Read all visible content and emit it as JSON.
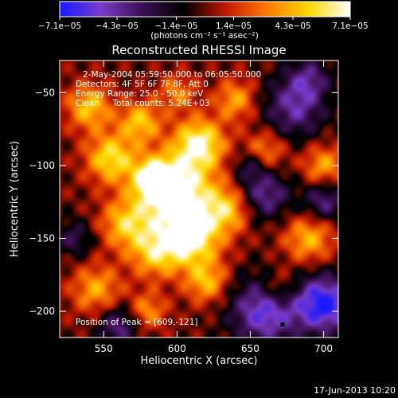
{
  "chart_data": {
    "type": "heatmap",
    "title": "Reconstructed RHESSI Image",
    "xlabel": "Heliocentric X (arcsec)",
    "ylabel": "Heliocentric Y (arcsec)",
    "xlim": [
      520,
      710
    ],
    "ylim": [
      -218,
      -28
    ],
    "x_ticks": [
      550,
      600,
      650,
      700
    ],
    "y_ticks": [
      -50,
      -100,
      -150,
      -200
    ],
    "colorbar": {
      "label": "(photons cm⁻² s⁻¹ asec⁻²)",
      "range": [
        -7.1e-05,
        7.1e-05
      ],
      "tick_labels": [
        "−7.1e−05",
        "−4.3e−05",
        "−1.4e−05",
        "1.4e−05",
        "4.3e−05",
        "7.1e−05"
      ],
      "tick_values": [
        -7.1e-05,
        -4.3e-05,
        -1.4e-05,
        1.4e-05,
        4.3e-05,
        7.1e-05
      ],
      "colors": [
        "#1a1aff",
        "#7a3cc8",
        "#3a1050",
        "#000000",
        "#c01800",
        "#ff7a00",
        "#ffd800",
        "#ffffff"
      ]
    },
    "annotations": [
      "2-May-2004 05:59:50.000 to 06:05:50.000",
      "Detectors: 4F 5F 6F 7F 8F, Att 0",
      "Energy Range: 25.0 - 50.0 keV",
      "Clean     Total counts: 5.24E+03"
    ],
    "peak_label": "Position of Peak = [609,-121]",
    "peak_marker": [
      672,
      -209
    ],
    "sources": [
      {
        "x": 600,
        "y": -120,
        "amp": 1.0,
        "sigma": 18
      },
      {
        "x": 615,
        "y": -85,
        "amp": 0.85,
        "sigma": 12
      },
      {
        "x": 585,
        "y": -110,
        "amp": 0.8,
        "sigma": 10
      },
      {
        "x": 555,
        "y": -95,
        "amp": 0.7,
        "sigma": 12
      },
      {
        "x": 540,
        "y": -60,
        "amp": 0.6,
        "sigma": 11
      },
      {
        "x": 610,
        "y": -150,
        "amp": 0.8,
        "sigma": 14
      },
      {
        "x": 585,
        "y": -160,
        "amp": 0.6,
        "sigma": 12
      },
      {
        "x": 635,
        "y": -130,
        "amp": 0.55,
        "sigma": 11
      },
      {
        "x": 565,
        "y": -140,
        "amp": 0.6,
        "sigma": 12
      },
      {
        "x": 640,
        "y": -55,
        "amp": 0.5,
        "sigma": 10
      },
      {
        "x": 660,
        "y": -90,
        "amp": 0.45,
        "sigma": 10
      },
      {
        "x": 690,
        "y": -150,
        "amp": 0.55,
        "sigma": 12
      },
      {
        "x": 700,
        "y": -100,
        "amp": 0.5,
        "sigma": 10
      },
      {
        "x": 545,
        "y": -185,
        "amp": 0.5,
        "sigma": 12
      },
      {
        "x": 580,
        "y": -200,
        "amp": 0.45,
        "sigma": 9
      },
      {
        "x": 620,
        "y": -180,
        "amp": 0.55,
        "sigma": 10
      },
      {
        "x": 670,
        "y": -185,
        "amp": 0.4,
        "sigma": 9
      },
      {
        "x": 575,
        "y": -70,
        "amp": 0.6,
        "sigma": 10
      },
      {
        "x": 600,
        "y": -50,
        "amp": 0.4,
        "sigma": 9
      },
      {
        "x": 680,
        "y": -60,
        "amp": -0.55,
        "sigma": 15
      },
      {
        "x": 660,
        "y": -200,
        "amp": -0.75,
        "sigma": 16
      },
      {
        "x": 700,
        "y": -195,
        "amp": -0.9,
        "sigma": 14
      },
      {
        "x": 660,
        "y": -120,
        "amp": -0.55,
        "sigma": 12
      },
      {
        "x": 700,
        "y": -125,
        "amp": -0.5,
        "sigma": 10
      },
      {
        "x": 560,
        "y": -210,
        "amp": -0.5,
        "sigma": 10
      },
      {
        "x": 530,
        "y": -150,
        "amp": -0.35,
        "sigma": 9
      },
      {
        "x": 650,
        "y": -100,
        "amp": -0.35,
        "sigma": 8
      },
      {
        "x": 690,
        "y": -40,
        "amp": -0.4,
        "sigma": 10
      }
    ]
  },
  "timestamp": "17-Jun-2013 10:20"
}
